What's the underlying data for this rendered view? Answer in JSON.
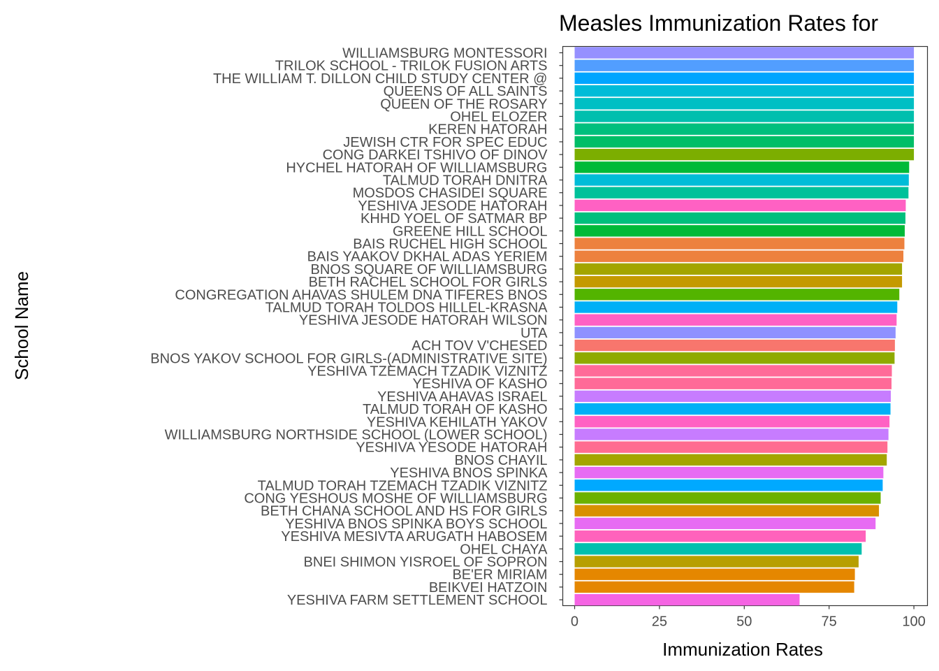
{
  "chart_data": {
    "type": "bar",
    "orientation": "horizontal",
    "title": "Measles Immunization Rates for",
    "xlabel": "Immunization Rates",
    "ylabel": "School Name",
    "xlim": [
      -3.5,
      104
    ],
    "xticks": [
      0,
      25,
      50,
      75,
      100
    ],
    "grid": false,
    "legend": "none",
    "bars": [
      {
        "category": "WILLIAMSBURG MONTESSORI",
        "value": 100,
        "color": "#9590FF"
      },
      {
        "category": "TRILOK SCHOOL - TRILOK FUSION ARTS",
        "value": 100,
        "color": "#529EFF"
      },
      {
        "category": "THE WILLIAM T. DILLON CHILD STUDY CENTER @",
        "value": 100,
        "color": "#00A5FF"
      },
      {
        "category": "QUEENS OF ALL SAINTS",
        "value": 100,
        "color": "#00BCD8"
      },
      {
        "category": "QUEEN OF THE ROSARY",
        "value": 100,
        "color": "#00BFC4"
      },
      {
        "category": "OHEL ELOZER",
        "value": 100,
        "color": "#00BFAE"
      },
      {
        "category": "KEREN HATORAH",
        "value": 100,
        "color": "#00BF7D"
      },
      {
        "category": "JEWISH CTR FOR SPEC EDUC",
        "value": 100,
        "color": "#00BE67"
      },
      {
        "category": "CONG DARKEI TSHIVO OF DINOV",
        "value": 100,
        "color": "#7CAE00"
      },
      {
        "category": "HYCHEL HATORAH OF WILLIAMSBURG",
        "value": 98.6,
        "color": "#00BA38"
      },
      {
        "category": "TALMUD TORAH DNITRA",
        "value": 98.5,
        "color": "#00BCD8"
      },
      {
        "category": "MOSDOS CHASIDEI SQUARE",
        "value": 98.4,
        "color": "#00C19A"
      },
      {
        "category": "YESHIVA JESODE HATORAH",
        "value": 97.6,
        "color": "#FF61C3"
      },
      {
        "category": "KHHD YOEL OF SATMAR BP",
        "value": 97.5,
        "color": "#00BF7D"
      },
      {
        "category": "GREENE HILL SCHOOL",
        "value": 97.3,
        "color": "#00BA38"
      },
      {
        "category": "BAIS RUCHEL HIGH SCHOOL",
        "value": 97.2,
        "color": "#ED813E"
      },
      {
        "category": "BAIS YAAKOV DKHAL ADAS YERIEM",
        "value": 96.9,
        "color": "#ED813E"
      },
      {
        "category": "BNOS SQUARE OF WILLIAMSBURG",
        "value": 96.5,
        "color": "#A3A500"
      },
      {
        "category": "BETH RACHEL SCHOOL FOR GIRLS",
        "value": 96.5,
        "color": "#C49A00"
      },
      {
        "category": "CONGREGATION AHAVAS SHULEM DNA TIFERES BNOS",
        "value": 95.7,
        "color": "#53B400"
      },
      {
        "category": "TALMUD TORAH TOLDOS HILLEL-KRASNA",
        "value": 95.1,
        "color": "#00B0F6"
      },
      {
        "category": "YESHIVA JESODE HATORAH WILSON",
        "value": 94.9,
        "color": "#FF61C3"
      },
      {
        "category": "UTA",
        "value": 94.6,
        "color": "#8F91FF"
      },
      {
        "category": "ACH TOV V'CHESED",
        "value": 94.4,
        "color": "#F8766D"
      },
      {
        "category": "BNOS YAKOV SCHOOL FOR GIRLS-(ADMINISTRATIVE SITE)",
        "value": 94.3,
        "color": "#8FAA00"
      },
      {
        "category": "YESHIVA TZEMACH TZADIK VIZNITZ",
        "value": 93.5,
        "color": "#FF6A98"
      },
      {
        "category": "YESHIVA OF KASHO",
        "value": 93.4,
        "color": "#FF6A98"
      },
      {
        "category": "YESHIVA AHAVAS ISRAEL",
        "value": 93.2,
        "color": "#C77CFF"
      },
      {
        "category": "TALMUD TORAH OF KASHO",
        "value": 93.1,
        "color": "#00B0F6"
      },
      {
        "category": "YESHIVA KEHILATH YAKOV",
        "value": 92.8,
        "color": "#FF61C3"
      },
      {
        "category": "WILLIAMSBURG NORTHSIDE SCHOOL (LOWER SCHOOL)",
        "value": 92.5,
        "color": "#C77CFF"
      },
      {
        "category": "YESHIVA YESODE HATORAH",
        "value": 92.2,
        "color": "#FF6C91"
      },
      {
        "category": "BNOS CHAYIL",
        "value": 92.0,
        "color": "#A3A500"
      },
      {
        "category": "YESHIVA BNOS SPINKA",
        "value": 91.0,
        "color": "#E76BF3"
      },
      {
        "category": "TALMUD TORAH TZEMACH TZADIK VIZNITZ",
        "value": 90.8,
        "color": "#00A9FF"
      },
      {
        "category": "CONG YESHOUS MOSHE OF WILLIAMSBURG",
        "value": 90.2,
        "color": "#6BB100"
      },
      {
        "category": "BETH CHANA SCHOOL AND HS FOR GIRLS",
        "value": 89.7,
        "color": "#D89000"
      },
      {
        "category": "YESHIVA BNOS SPINKA BOYS SCHOOL",
        "value": 88.7,
        "color": "#E76BF3"
      },
      {
        "category": "YESHIVA MESIVTA ARUGATH HABOSEM",
        "value": 85.8,
        "color": "#FF62BC"
      },
      {
        "category": "OHEL CHAYA",
        "value": 84.6,
        "color": "#00BFAE"
      },
      {
        "category": "BNEI SHIMON YISROEL OF SOPRON",
        "value": 83.7,
        "color": "#B79F00"
      },
      {
        "category": "BE'ER MIRIAM",
        "value": 82.6,
        "color": "#E58700"
      },
      {
        "category": "BEIKVEI HATZOIN",
        "value": 82.4,
        "color": "#E58700"
      },
      {
        "category": "YESHIVA FARM SETTLEMENT SCHOOL",
        "value": 66.3,
        "color": "#F564E3"
      }
    ]
  }
}
